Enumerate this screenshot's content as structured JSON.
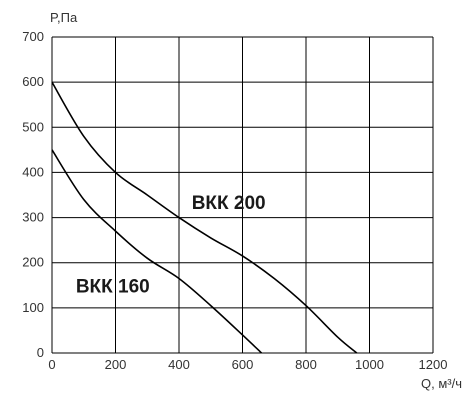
{
  "chart_data": {
    "type": "line",
    "xlabel": "Q, м³/ч",
    "ylabel": "P,Па",
    "xlim": [
      0,
      1200
    ],
    "ylim": [
      0,
      700
    ],
    "x_ticks": [
      "0",
      "200",
      "400",
      "600",
      "800",
      "1000",
      "1200"
    ],
    "y_ticks": [
      "0",
      "100",
      "200",
      "300",
      "400",
      "500",
      "600",
      "700"
    ],
    "grid": true,
    "series": [
      {
        "name": "ВКК 200",
        "x": [
          0,
          100,
          200,
          300,
          400,
          500,
          600,
          700,
          800,
          900,
          960
        ],
        "y": [
          600,
          480,
          400,
          350,
          300,
          255,
          215,
          165,
          105,
          35,
          0
        ]
      },
      {
        "name": "ВКК 160",
        "x": [
          0,
          100,
          200,
          300,
          400,
          500,
          600,
          660
        ],
        "y": [
          450,
          340,
          270,
          210,
          165,
          105,
          40,
          0
        ]
      }
    ]
  }
}
